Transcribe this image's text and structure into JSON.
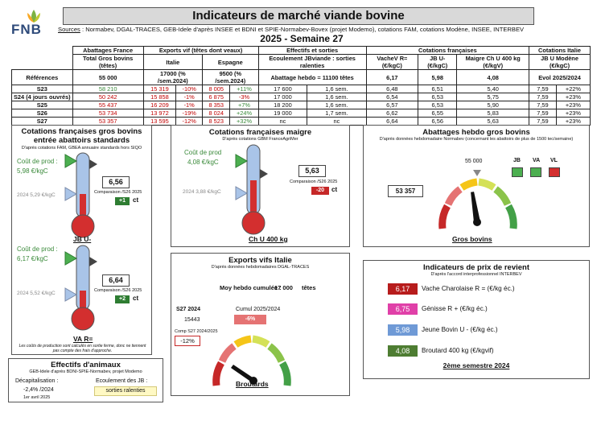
{
  "brand": {
    "logo_text": "FNB"
  },
  "header": {
    "title": "Indicateurs de marché viande bovine",
    "sources_label": "Sources",
    "sources_text": " : Normabev, DGAL-TRACES, GEB-Idele d'après INSEE et BDNI et SPIE-Normabev-Bovex (projet Modemo), cotations FAM, cotations Modène, INSEE, INTERBEV",
    "week": "2025 - Semaine 27"
  },
  "table": {
    "groups": [
      "Abattages France",
      "Exports vif (têtes dont veaux)",
      "Effectifs et sorties",
      "Cotations françaises",
      "Cotations Italie"
    ],
    "sub": [
      "Total Gros bovins (têtes)",
      "Italie",
      "Espagne",
      "Ecoulement JBviande : sorties ralenties",
      "VacheV R= (€/kgC)",
      "JB U- (€/kgC)",
      "Maigre Ch U 400 kg (€/kgV)",
      "JB U Modène (€/kgC)"
    ],
    "ref": {
      "label": "Références",
      "abattages": "55 000",
      "italie": "17000 (% /sem.2024)",
      "espagne": "9500 (% /sem.2024)",
      "effectifs": "Abattage hebdo = 11100 têtes",
      "vache": "6,17",
      "jb": "5,98",
      "maigre": "4,08",
      "italie_cot": "Evol 2025/2024"
    },
    "rows": [
      {
        "label": "S23",
        "abattages": "58 210",
        "it_v": "15 319",
        "it_p": "-10%",
        "es_v": "8 005",
        "es_p": "+11%",
        "ef_v": "17 600",
        "ef_s": "1,6 sem.",
        "vache": "6,48",
        "jb": "6,51",
        "maigre": "5,40",
        "itc_v": "7,59",
        "itc_p": "+22%"
      },
      {
        "label": "S24 (4 jours ouvrés)",
        "abattages": "50 242",
        "it_v": "15 858",
        "it_p": "-1%",
        "es_v": "6 875",
        "es_p": "-3%",
        "ef_v": "17 000",
        "ef_s": "1,6 sem.",
        "vache": "6,54",
        "jb": "6,53",
        "maigre": "5,75",
        "itc_v": "7,59",
        "itc_p": "+23%"
      },
      {
        "label": "S25",
        "abattages": "55 437",
        "it_v": "16 209",
        "it_p": "-1%",
        "es_v": "8 353",
        "es_p": "+7%",
        "ef_v": "18 200",
        "ef_s": "1,6 sem.",
        "vache": "6,57",
        "jb": "6,53",
        "maigre": "5,90",
        "itc_v": "7,59",
        "itc_p": "+23%"
      },
      {
        "label": "S26",
        "abattages": "53 734",
        "it_v": "13 972",
        "it_p": "-19%",
        "es_v": "8 024",
        "es_p": "+24%",
        "ef_v": "19 000",
        "ef_s": "1,7 sem.",
        "vache": "6,62",
        "jb": "6,55",
        "maigre": "5,83",
        "itc_v": "7,59",
        "itc_p": "+23%"
      },
      {
        "label": "S27",
        "abattages": "53 357",
        "it_v": "13 595",
        "it_p": "-12%",
        "es_v": "8 523",
        "es_p": "+32%",
        "ef_v": "nc",
        "ef_s": "nc",
        "vache": "6,64",
        "jb": "6,56",
        "maigre": "5,63",
        "itc_v": "7,59",
        "itc_p": "+23%"
      }
    ]
  },
  "gros_bovins": {
    "title": "Cotations françaises gros bovins entrée abattoirs standards",
    "sub": "D'après cotations FAM, GBEA annuaire standards hors SIQO",
    "jb": {
      "cout_label": "Coût de prod :",
      "cout_value": "5,98 €/kgC",
      "value": "6,56",
      "comparison": "Comparaison /S26 2025",
      "delta": "+1",
      "unit": "ct",
      "ref": "2024  5,29 €/kgC",
      "name": "JB U-"
    },
    "va": {
      "cout_label": "Coût de prod :",
      "cout_value": "6,17 €/kgC",
      "value": "6,64",
      "comparison": "Comparaison /S26 2025",
      "delta": "+2",
      "unit": "ct",
      "ref": "2024  5,52 €/kgC",
      "name": "VA R="
    },
    "note": "Les coûts de production sont calculés en sortie ferme, donc ne tiennent pas compte des frais d'approche."
  },
  "maigre": {
    "title": "Cotations françaises maigre",
    "sub": "D'après cotations GBM FranceAgriMer",
    "cout_label": "Coût de prod",
    "cout_value": "4,08 €/kgC",
    "value": "5,63",
    "comparison": "Comparaison /S26 2025",
    "delta": "-20",
    "unit": "ct",
    "ref": "2024    3,88 €/kgC",
    "name": "Ch U 400 kg"
  },
  "abattages_hebdo": {
    "title": "Abattages hebdo gros bovins",
    "sub": "D'après données hebdomadaire Normabev (concernant les abattoirs de plus de 1500 tec/semaine)",
    "value": "53 357",
    "ref": "55 000",
    "legend": [
      "JB",
      "VA",
      "VL"
    ],
    "legend_colors": [
      "#4caf50",
      "#4caf50",
      "#d32f2f"
    ],
    "name": "Gros bovins",
    "gauge_value": 53357
  },
  "exports": {
    "title": "Exports vifs  Italie",
    "sub": "D'après données hebdomadaires DGAL-TRACES",
    "moy_label": "Moy hebdo cumulée :",
    "moy_value": "17 000",
    "moy_unit": "têtes",
    "week_label": "S27 2024",
    "week_value": "15443",
    "cumul_label": "Cumul 2025/2024",
    "cumul_value": "-6%",
    "comp_label": "Comp S27 2024/2025",
    "comp_value": "-12%",
    "name": "Broutards"
  },
  "effectifs": {
    "title": "Effectifs d'animaux",
    "sub": "GEB-Idele d'après BDNI-SPIE-Normabev, projet Modemo",
    "decap_label": "Décapitalisation :",
    "decap_value": "-2,4% /2024",
    "date": "1er avril 2025",
    "ecoul_label": "Ecoulement des JB :",
    "ecoul_value": "sorties ralenties"
  },
  "prix": {
    "title": "Indicateurs de prix de revient",
    "sub": "D'après l'accord interprofessionnel INTERBEV",
    "items": [
      {
        "value": "6,17",
        "label": "Vache Charolaise R = (€/kg éc.)",
        "color": "#b71c1c"
      },
      {
        "value": "6,75",
        "label": "Génisse R + (€/kg éc.)",
        "color": "#e040a8"
      },
      {
        "value": "5,98",
        "label": "Jeune Bovin U - (€/kg éc.)",
        "color": "#6f9ad6"
      },
      {
        "value": "4,08",
        "label": "Broutard 400 kg (€/kgvif)",
        "color": "#4e7d32"
      }
    ],
    "period": "2ème semestre 2024"
  }
}
